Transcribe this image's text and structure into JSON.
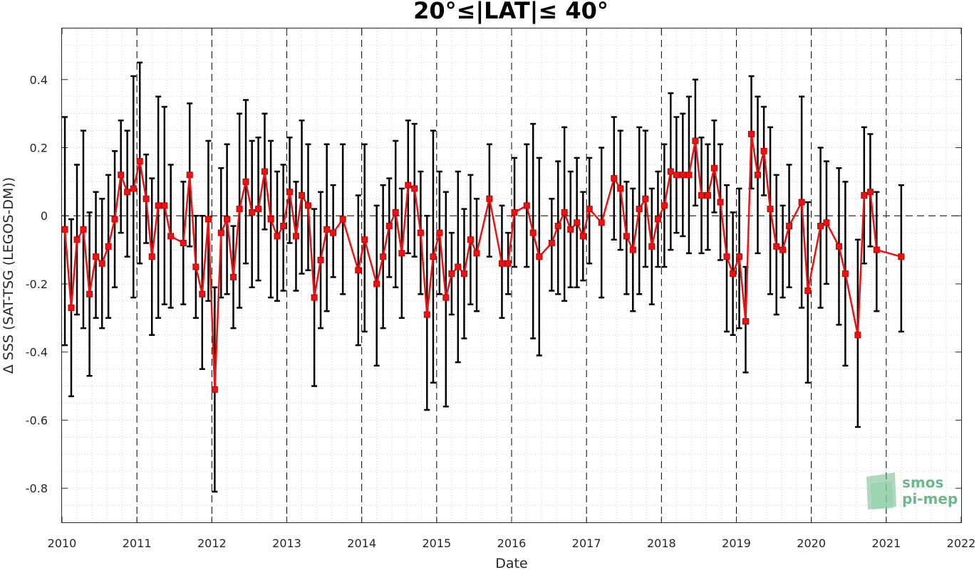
{
  "chart_data": {
    "type": "line",
    "title": "20°≤|LAT|≤ 40°",
    "xlabel": "Date",
    "ylabel": "Δ SSS (SAT-TSG (LEGOS-DM))",
    "xlim": [
      "2010-01-01",
      "2022-01-01"
    ],
    "ylim": [
      -0.9,
      0.55
    ],
    "x_tick_labels": [
      "2010",
      "2011",
      "2012",
      "2013",
      "2014",
      "2015",
      "2016",
      "2017",
      "2018",
      "2019",
      "2020",
      "2021",
      "2022"
    ],
    "y_tick_labels": [
      "-0.8",
      "-0.6",
      "-0.4",
      "-0.2",
      "0",
      "0.2",
      "0.4"
    ],
    "y_ticks": [
      -0.8,
      -0.6,
      -0.4,
      -0.2,
      0,
      0.2,
      0.4
    ],
    "grid": "dotted minor grid",
    "annual_lines": "dashed vertical lines at Jan 1 of each year",
    "zero_line": "dashed horizontal line at 0",
    "series": [
      {
        "color": "#ee1111",
        "errorbar_color": "#000000",
        "marker": "square",
        "points": [
          {
            "x": "2010-01-15",
            "y": -0.04,
            "lo": -0.38,
            "hi": 0.29
          },
          {
            "x": "2010-02-15",
            "y": -0.27,
            "lo": -0.53,
            "hi": -0.01
          },
          {
            "x": "2010-03-15",
            "y": -0.07,
            "lo": -0.29,
            "hi": 0.15
          },
          {
            "x": "2010-04-15",
            "y": -0.04,
            "lo": -0.33,
            "hi": 0.25
          },
          {
            "x": "2010-05-15",
            "y": -0.23,
            "lo": -0.47,
            "hi": 0.01
          },
          {
            "x": "2010-06-15",
            "y": -0.12,
            "lo": -0.3,
            "hi": 0.07
          },
          {
            "x": "2010-07-15",
            "y": -0.14,
            "lo": -0.33,
            "hi": 0.05
          },
          {
            "x": "2010-08-15",
            "y": -0.09,
            "lo": -0.3,
            "hi": 0.12
          },
          {
            "x": "2010-09-15",
            "y": -0.01,
            "lo": -0.21,
            "hi": 0.19
          },
          {
            "x": "2010-10-15",
            "y": 0.12,
            "lo": -0.05,
            "hi": 0.28
          },
          {
            "x": "2010-11-15",
            "y": 0.07,
            "lo": -0.12,
            "hi": 0.25
          },
          {
            "x": "2010-12-15",
            "y": 0.08,
            "lo": -0.24,
            "hi": 0.41
          },
          {
            "x": "2011-01-15",
            "y": 0.16,
            "lo": -0.14,
            "hi": 0.45
          },
          {
            "x": "2011-02-15",
            "y": 0.05,
            "lo": -0.08,
            "hi": 0.18
          },
          {
            "x": "2011-03-15",
            "y": -0.12,
            "lo": -0.35,
            "hi": 0.11
          },
          {
            "x": "2011-04-15",
            "y": 0.03,
            "lo": -0.3,
            "hi": 0.35
          },
          {
            "x": "2011-05-15",
            "y": 0.03,
            "lo": -0.26,
            "hi": 0.32
          },
          {
            "x": "2011-06-15",
            "y": -0.06,
            "lo": -0.27,
            "hi": 0.15
          },
          {
            "x": "2011-08-15",
            "y": -0.08,
            "lo": -0.26,
            "hi": 0.1
          },
          {
            "x": "2011-09-15",
            "y": 0.12,
            "lo": -0.09,
            "hi": 0.33
          },
          {
            "x": "2011-10-15",
            "y": -0.15,
            "lo": -0.3,
            "hi": 0.0
          },
          {
            "x": "2011-11-15",
            "y": -0.23,
            "lo": -0.45,
            "hi": 0.0
          },
          {
            "x": "2011-12-15",
            "y": -0.01,
            "lo": -0.25,
            "hi": 0.22
          },
          {
            "x": "2012-01-15",
            "y": -0.51,
            "lo": -0.81,
            "hi": -0.21
          },
          {
            "x": "2012-02-15",
            "y": -0.05,
            "lo": -0.24,
            "hi": 0.14
          },
          {
            "x": "2012-03-15",
            "y": -0.01,
            "lo": -0.23,
            "hi": 0.21
          },
          {
            "x": "2012-04-15",
            "y": -0.18,
            "lo": -0.33,
            "hi": -0.03
          },
          {
            "x": "2012-05-15",
            "y": 0.02,
            "lo": -0.27,
            "hi": 0.3
          },
          {
            "x": "2012-06-15",
            "y": 0.1,
            "lo": -0.14,
            "hi": 0.34
          },
          {
            "x": "2012-07-15",
            "y": 0.01,
            "lo": -0.21,
            "hi": 0.22
          },
          {
            "x": "2012-08-15",
            "y": 0.02,
            "lo": -0.19,
            "hi": 0.23
          },
          {
            "x": "2012-09-15",
            "y": 0.13,
            "lo": -0.04,
            "hi": 0.3
          },
          {
            "x": "2012-10-15",
            "y": -0.01,
            "lo": -0.24,
            "hi": 0.22
          },
          {
            "x": "2012-11-15",
            "y": -0.06,
            "lo": -0.25,
            "hi": 0.13
          },
          {
            "x": "2012-12-15",
            "y": -0.03,
            "lo": -0.22,
            "hi": 0.15
          },
          {
            "x": "2013-01-15",
            "y": 0.07,
            "lo": -0.08,
            "hi": 0.23
          },
          {
            "x": "2013-02-15",
            "y": -0.06,
            "lo": -0.22,
            "hi": 0.1
          },
          {
            "x": "2013-03-15",
            "y": 0.06,
            "lo": -0.17,
            "hi": 0.28
          },
          {
            "x": "2013-04-15",
            "y": 0.03,
            "lo": -0.16,
            "hi": 0.21
          },
          {
            "x": "2013-05-15",
            "y": -0.24,
            "lo": -0.5,
            "hi": 0.02
          },
          {
            "x": "2013-06-15",
            "y": -0.13,
            "lo": -0.33,
            "hi": 0.07
          },
          {
            "x": "2013-07-15",
            "y": -0.04,
            "lo": -0.28,
            "hi": 0.21
          },
          {
            "x": "2013-08-15",
            "y": -0.05,
            "lo": -0.18,
            "hi": 0.09
          },
          {
            "x": "2013-10-01",
            "y": -0.01,
            "lo": -0.23,
            "hi": 0.21
          },
          {
            "x": "2013-12-15",
            "y": -0.16,
            "lo": -0.38,
            "hi": 0.06
          },
          {
            "x": "2014-01-15",
            "y": -0.07,
            "lo": -0.34,
            "hi": 0.21
          },
          {
            "x": "2014-03-15",
            "y": -0.2,
            "lo": -0.44,
            "hi": 0.03
          },
          {
            "x": "2014-04-15",
            "y": -0.12,
            "lo": -0.33,
            "hi": 0.09
          },
          {
            "x": "2014-05-15",
            "y": -0.03,
            "lo": -0.18,
            "hi": 0.11
          },
          {
            "x": "2014-06-15",
            "y": 0.01,
            "lo": -0.21,
            "hi": 0.22
          },
          {
            "x": "2014-07-15",
            "y": -0.11,
            "lo": -0.3,
            "hi": 0.08
          },
          {
            "x": "2014-08-15",
            "y": 0.09,
            "lo": -0.11,
            "hi": 0.28
          },
          {
            "x": "2014-09-15",
            "y": 0.08,
            "lo": -0.12,
            "hi": 0.27
          },
          {
            "x": "2014-10-15",
            "y": -0.05,
            "lo": -0.23,
            "hi": 0.13
          },
          {
            "x": "2014-11-15",
            "y": -0.29,
            "lo": -0.57,
            "hi": 0.0
          },
          {
            "x": "2014-12-15",
            "y": -0.12,
            "lo": -0.49,
            "hi": 0.25
          },
          {
            "x": "2015-01-15",
            "y": -0.05,
            "lo": -0.23,
            "hi": 0.13
          },
          {
            "x": "2015-02-15",
            "y": -0.24,
            "lo": -0.56,
            "hi": 0.07
          },
          {
            "x": "2015-03-15",
            "y": -0.17,
            "lo": -0.29,
            "hi": -0.05
          },
          {
            "x": "2015-04-15",
            "y": -0.15,
            "lo": -0.43,
            "hi": 0.13
          },
          {
            "x": "2015-05-15",
            "y": -0.17,
            "lo": -0.36,
            "hi": 0.02
          },
          {
            "x": "2015-06-15",
            "y": -0.07,
            "lo": -0.26,
            "hi": 0.12
          },
          {
            "x": "2015-07-15",
            "y": -0.11,
            "lo": -0.28,
            "hi": 0.05
          },
          {
            "x": "2015-09-15",
            "y": 0.05,
            "lo": -0.12,
            "hi": 0.21
          },
          {
            "x": "2015-11-15",
            "y": -0.14,
            "lo": -0.3,
            "hi": 0.03
          },
          {
            "x": "2015-12-15",
            "y": -0.14,
            "lo": -0.23,
            "hi": -0.05
          },
          {
            "x": "2016-01-15",
            "y": 0.01,
            "lo": -0.15,
            "hi": 0.17
          },
          {
            "x": "2016-03-15",
            "y": 0.03,
            "lo": -0.15,
            "hi": 0.21
          },
          {
            "x": "2016-04-15",
            "y": -0.05,
            "lo": -0.36,
            "hi": 0.27
          },
          {
            "x": "2016-05-15",
            "y": -0.12,
            "lo": -0.41,
            "hi": 0.17
          },
          {
            "x": "2016-07-15",
            "y": -0.08,
            "lo": -0.22,
            "hi": 0.05
          },
          {
            "x": "2016-08-15",
            "y": -0.03,
            "lo": -0.23,
            "hi": 0.16
          },
          {
            "x": "2016-09-15",
            "y": 0.01,
            "lo": -0.25,
            "hi": 0.26
          },
          {
            "x": "2016-10-15",
            "y": -0.04,
            "lo": -0.21,
            "hi": 0.13
          },
          {
            "x": "2016-11-15",
            "y": -0.02,
            "lo": -0.21,
            "hi": 0.17
          },
          {
            "x": "2016-12-15",
            "y": -0.06,
            "lo": -0.19,
            "hi": 0.07
          },
          {
            "x": "2017-01-15",
            "y": 0.02,
            "lo": -0.14,
            "hi": 0.17
          },
          {
            "x": "2017-03-15",
            "y": -0.02,
            "lo": -0.24,
            "hi": 0.2
          },
          {
            "x": "2017-05-15",
            "y": 0.11,
            "lo": -0.07,
            "hi": 0.29
          },
          {
            "x": "2017-06-15",
            "y": 0.08,
            "lo": -0.1,
            "hi": 0.25
          },
          {
            "x": "2017-07-15",
            "y": -0.06,
            "lo": -0.23,
            "hi": 0.1
          },
          {
            "x": "2017-08-15",
            "y": -0.1,
            "lo": -0.28,
            "hi": 0.08
          },
          {
            "x": "2017-09-15",
            "y": 0.02,
            "lo": -0.23,
            "hi": 0.26
          },
          {
            "x": "2017-10-15",
            "y": 0.05,
            "lo": -0.15,
            "hi": 0.25
          },
          {
            "x": "2017-11-15",
            "y": -0.09,
            "lo": -0.26,
            "hi": 0.08
          },
          {
            "x": "2017-12-15",
            "y": -0.01,
            "lo": -0.15,
            "hi": 0.13
          },
          {
            "x": "2018-01-15",
            "y": 0.03,
            "lo": -0.15,
            "hi": 0.21
          },
          {
            "x": "2018-02-15",
            "y": 0.13,
            "lo": -0.1,
            "hi": 0.36
          },
          {
            "x": "2018-03-15",
            "y": 0.12,
            "lo": -0.05,
            "hi": 0.29
          },
          {
            "x": "2018-04-15",
            "y": 0.12,
            "lo": -0.06,
            "hi": 0.3
          },
          {
            "x": "2018-05-15",
            "y": 0.12,
            "lo": -0.11,
            "hi": 0.35
          },
          {
            "x": "2018-06-15",
            "y": 0.22,
            "lo": 0.03,
            "hi": 0.4
          },
          {
            "x": "2018-07-15",
            "y": 0.06,
            "lo": -0.11,
            "hi": 0.23
          },
          {
            "x": "2018-08-15",
            "y": 0.06,
            "lo": -0.1,
            "hi": 0.21
          },
          {
            "x": "2018-09-15",
            "y": 0.14,
            "lo": 0.01,
            "hi": 0.28
          },
          {
            "x": "2018-10-15",
            "y": 0.04,
            "lo": -0.13,
            "hi": 0.21
          },
          {
            "x": "2018-11-15",
            "y": -0.12,
            "lo": -0.34,
            "hi": 0.09
          },
          {
            "x": "2018-12-15",
            "y": -0.17,
            "lo": -0.35,
            "hi": 0.01
          },
          {
            "x": "2019-01-15",
            "y": -0.12,
            "lo": -0.33,
            "hi": 0.08
          },
          {
            "x": "2019-02-15",
            "y": -0.31,
            "lo": -0.46,
            "hi": -0.15
          },
          {
            "x": "2019-03-15",
            "y": 0.24,
            "lo": 0.08,
            "hi": 0.41
          },
          {
            "x": "2019-04-15",
            "y": 0.12,
            "lo": -0.11,
            "hi": 0.35
          },
          {
            "x": "2019-05-15",
            "y": 0.19,
            "lo": 0.06,
            "hi": 0.32
          },
          {
            "x": "2019-06-15",
            "y": 0.02,
            "lo": -0.23,
            "hi": 0.26
          },
          {
            "x": "2019-07-15",
            "y": -0.09,
            "lo": -0.29,
            "hi": 0.12
          },
          {
            "x": "2019-08-15",
            "y": -0.1,
            "lo": -0.24,
            "hi": 0.03
          },
          {
            "x": "2019-09-15",
            "y": -0.03,
            "lo": -0.21,
            "hi": 0.15
          },
          {
            "x": "2019-11-15",
            "y": 0.04,
            "lo": -0.27,
            "hi": 0.35
          },
          {
            "x": "2019-12-15",
            "y": -0.22,
            "lo": -0.49,
            "hi": 0.04
          },
          {
            "x": "2020-02-15",
            "y": -0.03,
            "lo": -0.27,
            "hi": 0.2
          },
          {
            "x": "2020-03-15",
            "y": -0.02,
            "lo": -0.2,
            "hi": 0.16
          },
          {
            "x": "2020-05-15",
            "y": -0.09,
            "lo": -0.32,
            "hi": 0.14
          },
          {
            "x": "2020-06-15",
            "y": -0.17,
            "lo": -0.44,
            "hi": 0.1
          },
          {
            "x": "2020-08-15",
            "y": -0.35,
            "lo": -0.62,
            "hi": -0.07
          },
          {
            "x": "2020-09-15",
            "y": 0.06,
            "lo": -0.14,
            "hi": 0.26
          },
          {
            "x": "2020-10-15",
            "y": 0.07,
            "lo": -0.09,
            "hi": 0.24
          },
          {
            "x": "2020-11-15",
            "y": -0.1,
            "lo": -0.28,
            "hi": 0.07
          },
          {
            "x": "2021-03-15",
            "y": -0.12,
            "lo": -0.34,
            "hi": 0.09
          }
        ]
      }
    ]
  },
  "logo": {
    "line1": "smos",
    "line2": "pi-mep",
    "color": "#6db88a"
  }
}
